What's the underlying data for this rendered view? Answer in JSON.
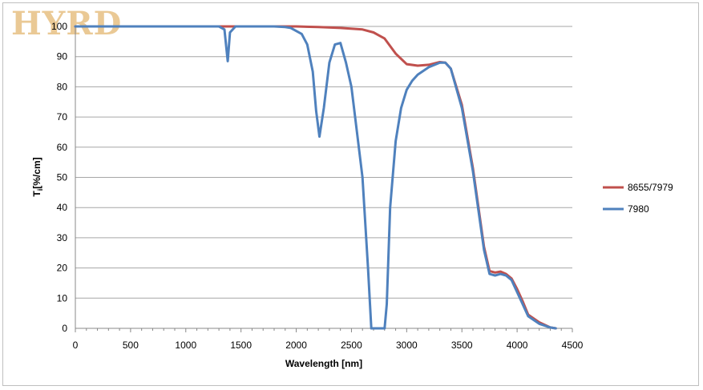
{
  "logo_text": "HYRD",
  "chart_data": {
    "type": "line",
    "xlabel": "Wavelength [nm]",
    "ylabel_main": "T",
    "ylabel_sub": "i",
    "ylabel_rest": "[%/cm]",
    "xlim": [
      0,
      4500
    ],
    "ylim": [
      0,
      100
    ],
    "xticks": [
      0,
      500,
      1000,
      1500,
      2000,
      2500,
      3000,
      3500,
      4000,
      4500
    ],
    "yticks": [
      0,
      10,
      20,
      30,
      40,
      50,
      60,
      70,
      80,
      90,
      100
    ],
    "grid": "horizontal",
    "legend_position": "right",
    "series": [
      {
        "name": "8655/7979",
        "color": "#c0504d",
        "x": [
          0,
          2000,
          2200,
          2400,
          2600,
          2700,
          2750,
          2800,
          2900,
          3000,
          3100,
          3200,
          3300,
          3350,
          3400,
          3500,
          3600,
          3700,
          3750,
          3800,
          3850,
          3900,
          3950,
          4000,
          4050,
          4100,
          4200,
          4300,
          4350
        ],
        "y": [
          100,
          100,
          99.8,
          99.5,
          99,
          98,
          97,
          96,
          91,
          87.5,
          87,
          87.3,
          88.2,
          88,
          86,
          74,
          53,
          27,
          19,
          18.5,
          18.8,
          18,
          16.5,
          13,
          9,
          4.5,
          2,
          0.3,
          0
        ]
      },
      {
        "name": "7980",
        "color": "#4f81bd",
        "x": [
          0,
          1250,
          1300,
          1350,
          1380,
          1400,
          1450,
          1500,
          1800,
          1900,
          1950,
          2000,
          2050,
          2100,
          2150,
          2180,
          2210,
          2250,
          2300,
          2350,
          2400,
          2450,
          2500,
          2550,
          2600,
          2650,
          2680,
          2700,
          2800,
          2820,
          2850,
          2900,
          2950,
          3000,
          3050,
          3100,
          3200,
          3300,
          3350,
          3400,
          3500,
          3600,
          3700,
          3750,
          3800,
          3850,
          3900,
          3950,
          4000,
          4050,
          4100,
          4200,
          4300,
          4350
        ],
        "y": [
          100,
          100,
          100,
          99,
          88.5,
          98,
          100,
          100,
          100,
          99.8,
          99.5,
          98.5,
          97.5,
          94,
          85,
          72,
          63.5,
          73,
          88,
          94,
          94.5,
          88,
          80,
          65,
          50,
          20,
          0,
          0,
          0,
          8,
          40,
          62,
          73,
          79,
          82,
          84,
          86.5,
          88,
          88,
          86,
          73,
          52,
          26,
          18,
          17.5,
          18,
          17.5,
          16,
          12,
          8,
          4,
          1.5,
          0.3,
          0
        ]
      }
    ]
  }
}
